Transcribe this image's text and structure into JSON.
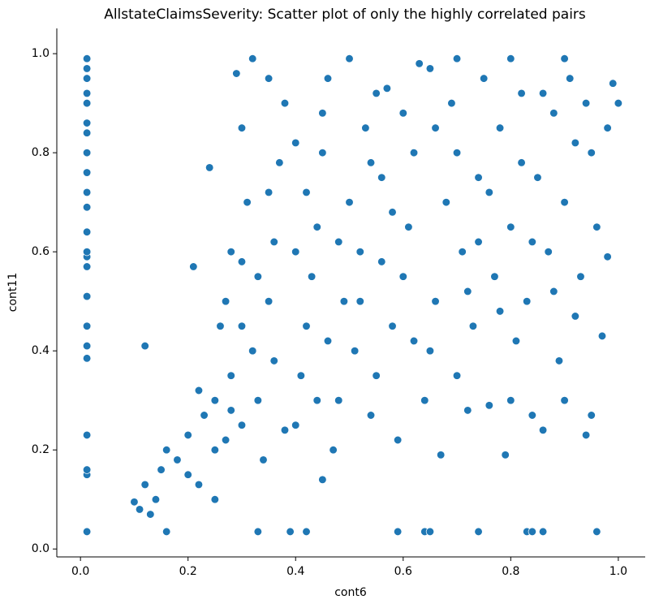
{
  "chart_data": {
    "type": "scatter",
    "title": "AllstateClaimsSeverity: Scatter plot of only the highly correlated pairs",
    "x_label": "cont6",
    "y_label": "cont11",
    "color": "#1f77b4",
    "xlim": [
      -0.044,
      1.05
    ],
    "ylim": [
      -0.016,
      1.051
    ],
    "xticks": [
      {
        "value": 0,
        "label": "0.0"
      },
      {
        "value": 0.2,
        "label": "0.2"
      },
      {
        "value": 0.4,
        "label": "0.4"
      },
      {
        "value": 0.6,
        "label": "0.6"
      },
      {
        "value": 0.8,
        "label": "0.8"
      },
      {
        "value": 1,
        "label": "1.0"
      }
    ],
    "yticks": [
      {
        "value": 0,
        "label": "0.0"
      },
      {
        "value": 0.2,
        "label": "0.2"
      },
      {
        "value": 0.4,
        "label": "0.4"
      },
      {
        "value": 0.6,
        "label": "0.6"
      },
      {
        "value": 0.8,
        "label": "0.8"
      },
      {
        "value": 1,
        "label": "1.0"
      }
    ],
    "x": [
      0.012,
      0.012,
      0.012,
      0.012,
      0.012,
      0.012,
      0.012,
      0.012,
      0.012,
      0.012,
      0.012,
      0.012,
      0.012,
      0.012,
      0.012,
      0.012,
      0.012,
      0.012,
      0.012,
      0.012,
      0.012,
      0.012,
      0.012,
      0.16,
      0.33,
      0.39,
      0.42,
      0.59,
      0.64,
      0.65,
      0.74,
      0.83,
      0.84,
      0.86,
      0.96,
      0.1,
      0.11,
      0.13,
      0.14,
      0.12,
      0.15,
      0.16,
      0.18,
      0.2,
      0.22,
      0.25,
      0.12,
      0.21,
      0.2,
      0.23,
      0.25,
      0.27,
      0.28,
      0.3,
      0.26,
      0.24,
      0.28,
      0.29,
      0.3,
      0.31,
      0.32,
      0.33,
      0.34,
      0.35,
      0.36,
      0.37,
      0.38,
      0.32,
      0.35,
      0.4,
      0.41,
      0.42,
      0.43,
      0.44,
      0.45,
      0.45,
      0.46,
      0.47,
      0.48,
      0.49,
      0.5,
      0.5,
      0.51,
      0.52,
      0.53,
      0.54,
      0.55,
      0.56,
      0.57,
      0.58,
      0.59,
      0.6,
      0.61,
      0.62,
      0.63,
      0.64,
      0.65,
      0.66,
      0.67,
      0.68,
      0.69,
      0.7,
      0.71,
      0.72,
      0.73,
      0.74,
      0.75,
      0.76,
      0.77,
      0.78,
      0.79,
      0.8,
      0.8,
      0.81,
      0.82,
      0.83,
      0.84,
      0.85,
      0.86,
      0.87,
      0.88,
      0.89,
      0.9,
      0.9,
      0.91,
      0.92,
      0.93,
      0.94,
      0.95,
      0.95,
      0.96,
      0.97,
      0.98,
      0.98,
      0.99,
      1.0,
      0.22,
      0.25,
      0.28,
      0.3,
      0.33,
      0.36,
      0.38,
      0.4,
      0.42,
      0.44,
      0.46,
      0.48,
      0.52,
      0.54,
      0.56,
      0.58,
      0.6,
      0.62,
      0.66,
      0.7,
      0.72,
      0.74,
      0.76,
      0.78,
      0.82,
      0.84,
      0.86,
      0.88,
      0.92,
      0.94,
      0.65,
      0.7,
      0.8,
      0.9,
      0.55,
      0.45,
      0.4,
      0.35,
      0.3,
      0.27
    ],
    "values": [
      0.035,
      0.15,
      0.16,
      0.23,
      0.385,
      0.41,
      0.45,
      0.51,
      0.57,
      0.59,
      0.6,
      0.64,
      0.69,
      0.72,
      0.76,
      0.8,
      0.84,
      0.86,
      0.9,
      0.92,
      0.95,
      0.97,
      0.99,
      0.035,
      0.035,
      0.035,
      0.035,
      0.035,
      0.035,
      0.035,
      0.035,
      0.035,
      0.035,
      0.035,
      0.035,
      0.095,
      0.08,
      0.07,
      0.1,
      0.13,
      0.16,
      0.2,
      0.18,
      0.15,
      0.13,
      0.1,
      0.41,
      0.57,
      0.23,
      0.27,
      0.3,
      0.22,
      0.35,
      0.25,
      0.45,
      0.77,
      0.6,
      0.96,
      0.85,
      0.7,
      0.4,
      0.3,
      0.18,
      0.5,
      0.62,
      0.78,
      0.9,
      0.99,
      0.95,
      0.25,
      0.35,
      0.45,
      0.55,
      0.65,
      0.14,
      0.8,
      0.95,
      0.2,
      0.3,
      0.5,
      0.7,
      0.99,
      0.4,
      0.6,
      0.85,
      0.27,
      0.35,
      0.75,
      0.93,
      0.45,
      0.22,
      0.55,
      0.65,
      0.8,
      0.98,
      0.3,
      0.4,
      0.5,
      0.19,
      0.7,
      0.9,
      0.35,
      0.6,
      0.28,
      0.45,
      0.75,
      0.95,
      0.29,
      0.55,
      0.85,
      0.19,
      0.3,
      0.65,
      0.42,
      0.92,
      0.5,
      0.27,
      0.75,
      0.24,
      0.6,
      0.88,
      0.38,
      0.3,
      0.7,
      0.95,
      0.47,
      0.55,
      0.23,
      0.27,
      0.8,
      0.65,
      0.43,
      0.59,
      0.85,
      0.94,
      0.9,
      0.32,
      0.2,
      0.28,
      0.45,
      0.55,
      0.38,
      0.24,
      0.6,
      0.72,
      0.3,
      0.42,
      0.62,
      0.5,
      0.78,
      0.58,
      0.68,
      0.88,
      0.42,
      0.85,
      0.8,
      0.52,
      0.62,
      0.72,
      0.48,
      0.78,
      0.62,
      0.92,
      0.52,
      0.82,
      0.9,
      0.97,
      0.99,
      0.99,
      0.99,
      0.92,
      0.88,
      0.82,
      0.72,
      0.58,
      0.5
    ]
  }
}
